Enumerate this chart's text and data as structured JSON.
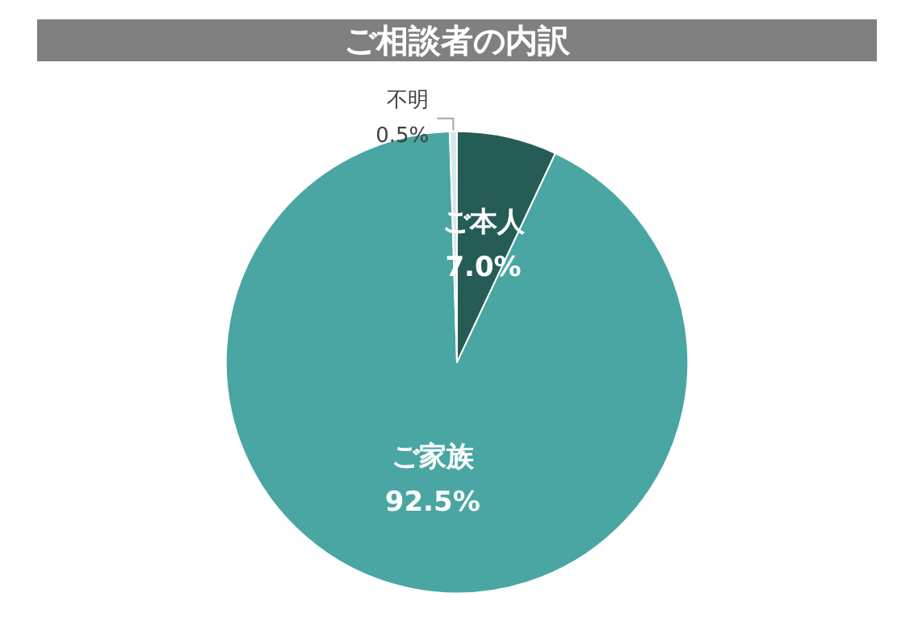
{
  "chart_data": {
    "type": "pie",
    "title": "ご相談者の内訳",
    "categories": [
      "ご本人",
      "ご家族",
      "不明"
    ],
    "values": [
      7.0,
      92.5,
      0.5
    ],
    "value_labels": [
      "7.0%",
      "92.5%",
      "0.5%"
    ],
    "colors": [
      "#255c55",
      "#49a6a3",
      "#d6e9e8"
    ],
    "legend": false
  }
}
